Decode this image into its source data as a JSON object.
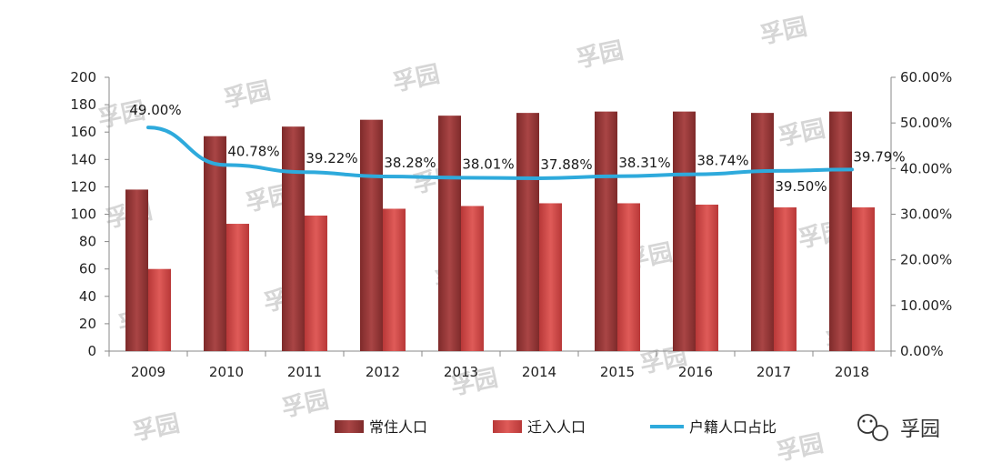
{
  "chart_data": {
    "type": "bar+line",
    "categories": [
      "2009",
      "2010",
      "2011",
      "2012",
      "2013",
      "2014",
      "2015",
      "2016",
      "2017",
      "2018"
    ],
    "series": [
      {
        "name": "常住人口",
        "type": "bar",
        "axis": "left",
        "values": [
          118,
          157,
          164,
          169,
          172,
          174,
          175,
          175,
          174,
          175
        ]
      },
      {
        "name": "迁入人口",
        "type": "bar",
        "axis": "left",
        "values": [
          60,
          93,
          99,
          104,
          106,
          108,
          108,
          107,
          105,
          105
        ]
      },
      {
        "name": "户籍人口占比",
        "type": "line",
        "axis": "right",
        "values": [
          49.0,
          40.78,
          39.22,
          38.28,
          38.01,
          37.88,
          38.31,
          38.74,
          39.5,
          39.79
        ],
        "labels": [
          "49.00%",
          "40.78%",
          "39.22%",
          "38.28%",
          "38.01%",
          "37.88%",
          "38.31%",
          "38.74%",
          "39.50%",
          "39.79%"
        ]
      }
    ],
    "y_left": {
      "min": 0,
      "max": 200,
      "step": 20,
      "ticks": [
        "0",
        "20",
        "40",
        "60",
        "80",
        "100",
        "120",
        "140",
        "160",
        "180",
        "200"
      ]
    },
    "y_right": {
      "min": 0,
      "max": 60,
      "step": 10,
      "ticks": [
        "0.00%",
        "10.00%",
        "20.00%",
        "30.00%",
        "40.00%",
        "50.00%",
        "60.00%"
      ]
    },
    "legend_position": "bottom",
    "colors": {
      "bar1": "#9b3a3a",
      "bar2": "#cf4a48",
      "line": "#2eaadc"
    }
  },
  "watermark": "孚园",
  "brand": {
    "icon": "wechat-icon",
    "text": "孚园"
  }
}
